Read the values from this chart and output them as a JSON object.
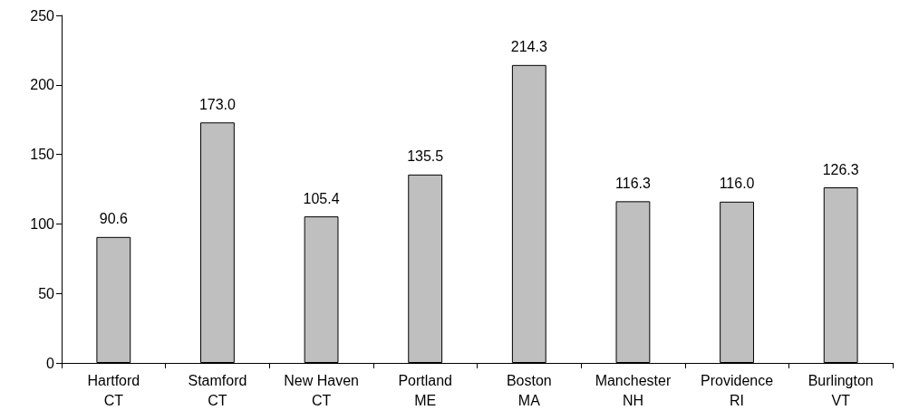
{
  "chart_data": {
    "type": "bar",
    "categories": [
      "Hartford\nCT",
      "Stamford\nCT",
      "New Haven\nCT",
      "Portland\nME",
      "Boston\nMA",
      "Manchester\nNH",
      "Providence\nRI",
      "Burlington\nVT"
    ],
    "values": [
      90.6,
      173.0,
      105.4,
      135.5,
      214.3,
      116.3,
      116.0,
      126.3
    ],
    "value_labels": [
      "90.6",
      "173.0",
      "105.4",
      "135.5",
      "214.3",
      "116.3",
      "116.0",
      "126.3"
    ],
    "color": "#bfbfbf",
    "ylim": [
      0,
      250
    ],
    "yticks": [
      0,
      50,
      100,
      150,
      200,
      250
    ],
    "grid": false
  }
}
